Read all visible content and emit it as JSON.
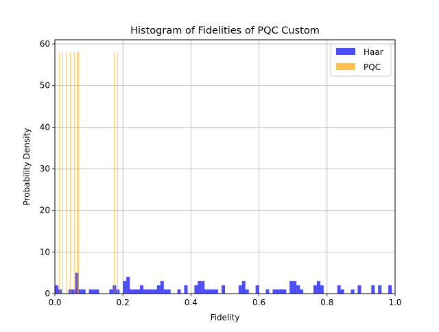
{
  "chart_data": {
    "type": "bar",
    "title": "Histogram of Fidelities of PQC Custom",
    "xlabel": "Fidelity",
    "ylabel": "Probability Density",
    "xlim": [
      0,
      1
    ],
    "ylim": [
      0,
      61
    ],
    "xticks": [
      "0.0",
      "0.2",
      "0.4",
      "0.6",
      "0.8",
      "1.0"
    ],
    "yticks": [
      "0",
      "10",
      "20",
      "30",
      "40",
      "50",
      "60"
    ],
    "grid": true,
    "legend_position": "top-right",
    "series": [
      {
        "name": "Haar",
        "color": "#0000ff",
        "alpha": 0.7,
        "bin_width": 0.01,
        "bins": [
          [
            0.0,
            2
          ],
          [
            0.01,
            1
          ],
          [
            0.04,
            1
          ],
          [
            0.05,
            1
          ],
          [
            0.06,
            5
          ],
          [
            0.07,
            1
          ],
          [
            0.08,
            1
          ],
          [
            0.1,
            1
          ],
          [
            0.11,
            1
          ],
          [
            0.12,
            1
          ],
          [
            0.16,
            1
          ],
          [
            0.17,
            2
          ],
          [
            0.18,
            1
          ],
          [
            0.2,
            3
          ],
          [
            0.21,
            4
          ],
          [
            0.22,
            1
          ],
          [
            0.23,
            1
          ],
          [
            0.24,
            1
          ],
          [
            0.25,
            2
          ],
          [
            0.26,
            1
          ],
          [
            0.27,
            1
          ],
          [
            0.28,
            1
          ],
          [
            0.29,
            1
          ],
          [
            0.3,
            2
          ],
          [
            0.31,
            3
          ],
          [
            0.32,
            1
          ],
          [
            0.33,
            1
          ],
          [
            0.36,
            1
          ],
          [
            0.38,
            2
          ],
          [
            0.41,
            2
          ],
          [
            0.42,
            3
          ],
          [
            0.43,
            3
          ],
          [
            0.44,
            1
          ],
          [
            0.45,
            1
          ],
          [
            0.46,
            1
          ],
          [
            0.47,
            1
          ],
          [
            0.49,
            2
          ],
          [
            0.54,
            2
          ],
          [
            0.55,
            3
          ],
          [
            0.56,
            1
          ],
          [
            0.59,
            2
          ],
          [
            0.62,
            1
          ],
          [
            0.64,
            1
          ],
          [
            0.65,
            1
          ],
          [
            0.66,
            1
          ],
          [
            0.67,
            1
          ],
          [
            0.69,
            3
          ],
          [
            0.7,
            3
          ],
          [
            0.71,
            2
          ],
          [
            0.72,
            1
          ],
          [
            0.76,
            2
          ],
          [
            0.77,
            3
          ],
          [
            0.78,
            2
          ],
          [
            0.83,
            2
          ],
          [
            0.84,
            1
          ],
          [
            0.87,
            1
          ],
          [
            0.89,
            2
          ],
          [
            0.93,
            2
          ],
          [
            0.95,
            2
          ],
          [
            0.98,
            2
          ]
        ]
      },
      {
        "name": "PQC",
        "color": "#ffa500",
        "alpha": 0.7,
        "bin_width": 0.0018,
        "bins": [
          [
            0.012,
            58
          ],
          [
            0.022,
            58
          ],
          [
            0.033,
            58
          ],
          [
            0.044,
            58
          ],
          [
            0.056,
            58
          ],
          [
            0.065,
            58
          ],
          [
            0.068,
            58
          ],
          [
            0.173,
            58
          ],
          [
            0.183,
            58
          ]
        ]
      }
    ]
  }
}
